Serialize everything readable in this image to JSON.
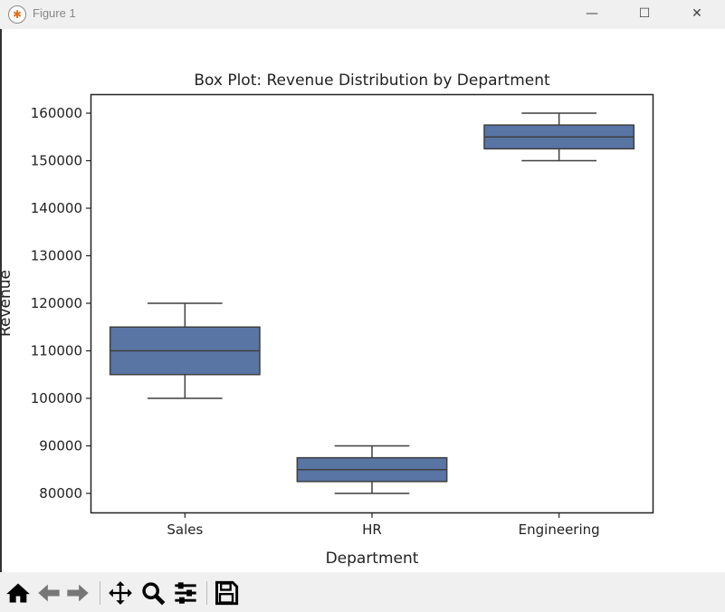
{
  "window": {
    "title": "Figure 1",
    "minimize": "—",
    "maximize": "☐",
    "close": "✕"
  },
  "toolbar": {
    "icons": [
      "home-icon",
      "back-arrow-icon",
      "forward-arrow-icon",
      "pan-icon",
      "zoom-icon",
      "configure-subplots-icon",
      "save-icon"
    ]
  },
  "chart_data": {
    "type": "box",
    "title": "Box Plot: Revenue Distribution by Department",
    "xlabel": "Department",
    "ylabel": "Revenue",
    "categories": [
      "Sales",
      "HR",
      "Engineering"
    ],
    "boxes": [
      {
        "min": 100000,
        "q1": 105000,
        "median": 110000,
        "q3": 115000,
        "max": 120000
      },
      {
        "min": 80000,
        "q1": 82500,
        "median": 85000,
        "q3": 87500,
        "max": 90000
      },
      {
        "min": 150000,
        "q1": 152500,
        "median": 155000,
        "q3": 157500,
        "max": 160000
      }
    ],
    "ylim": [
      76000,
      164000
    ],
    "yticks": [
      80000,
      90000,
      100000,
      110000,
      120000,
      130000,
      140000,
      150000,
      160000
    ],
    "grid": false,
    "color": "#5875a4",
    "line_color": "#3f3f3f"
  }
}
